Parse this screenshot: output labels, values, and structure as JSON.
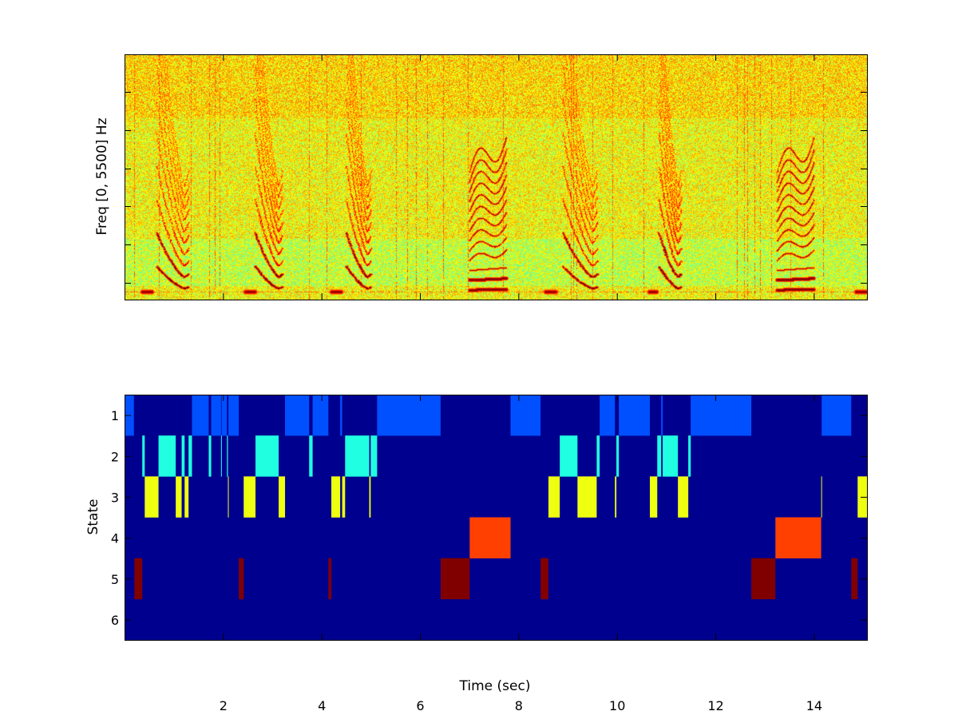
{
  "chart_data": [
    {
      "type": "heatmap",
      "title": "",
      "ylabel": "Freq [0, 5500] Hz",
      "xlabel": "",
      "xlim": [
        0,
        15.08
      ],
      "ylim": [
        0,
        5500
      ],
      "colormap": "jet",
      "spectrogram_events": {
        "swoop_calls": [
          [
            0.65,
            1.3
          ],
          [
            2.65,
            3.2
          ],
          [
            4.5,
            5.0
          ],
          [
            8.9,
            9.6
          ],
          [
            10.85,
            11.3
          ]
        ],
        "harmonic_stack_calls": [
          [
            7.0,
            7.75
          ],
          [
            13.25,
            14.0
          ]
        ],
        "low_frequency_bursts": [
          [
            0.35,
            0.55
          ],
          [
            2.45,
            2.65
          ],
          [
            4.2,
            4.4
          ],
          [
            8.55,
            8.75
          ],
          [
            10.65,
            10.8
          ],
          [
            14.85,
            15.05
          ]
        ]
      }
    },
    {
      "type": "heatmap",
      "title": "",
      "xlabel": "Time (sec)",
      "ylabel": "State",
      "xlim": [
        0,
        15.08
      ],
      "ylim": [
        0.5,
        6.5
      ],
      "xticks": [
        "2",
        "4",
        "6",
        "8",
        "10",
        "12",
        "14"
      ],
      "yticks": [
        "1",
        "2",
        "3",
        "4",
        "5",
        "6"
      ],
      "background_color": "#00008F",
      "state_colors": {
        "1": "#0050FF",
        "2": "#20FFE0",
        "3": "#EFFF10",
        "4": "#FF4000",
        "5": "#800000"
      },
      "segments": {
        "1": [
          [
            0,
            0.19
          ],
          [
            1.37,
            1.71
          ],
          [
            1.76,
            1.96
          ],
          [
            1.97,
            2.08
          ],
          [
            2.11,
            2.32
          ],
          [
            3.26,
            3.75
          ],
          [
            3.82,
            4.14
          ],
          [
            4.38,
            4.42
          ],
          [
            5.13,
            6.42
          ],
          [
            7.84,
            8.45
          ],
          [
            9.65,
            9.96
          ],
          [
            10.04,
            10.67
          ],
          [
            10.9,
            10.93
          ],
          [
            11.5,
            12.73
          ],
          [
            14.16,
            14.76
          ]
        ],
        "2": [
          [
            0.36,
            0.41
          ],
          [
            0.69,
            1.04
          ],
          [
            1.16,
            1.22
          ],
          [
            1.3,
            1.37
          ],
          [
            1.71,
            1.76
          ],
          [
            1.96,
            1.97
          ],
          [
            2.08,
            2.1
          ],
          [
            2.66,
            3.13
          ],
          [
            3.75,
            3.82
          ],
          [
            4.48,
            4.97
          ],
          [
            5.0,
            5.13
          ],
          [
            8.84,
            9.2
          ],
          [
            9.59,
            9.65
          ],
          [
            9.99,
            10.04
          ],
          [
            10.82,
            10.9
          ],
          [
            10.93,
            11.24
          ],
          [
            11.45,
            11.5
          ]
        ],
        "3": [
          [
            0.41,
            0.69
          ],
          [
            1.04,
            1.16
          ],
          [
            1.22,
            1.3
          ],
          [
            2.1,
            2.11
          ],
          [
            2.42,
            2.66
          ],
          [
            3.13,
            3.26
          ],
          [
            4.2,
            4.38
          ],
          [
            4.42,
            4.48
          ],
          [
            4.97,
            5.0
          ],
          [
            8.61,
            8.84
          ],
          [
            9.2,
            9.59
          ],
          [
            9.96,
            9.99
          ],
          [
            10.67,
            10.82
          ],
          [
            11.24,
            11.45
          ],
          [
            14.15,
            14.16
          ],
          [
            14.89,
            15.08
          ]
        ],
        "4": [
          [
            7.01,
            7.84
          ],
          [
            13.22,
            14.15
          ]
        ],
        "5": [
          [
            0.2,
            0.36
          ],
          [
            2.32,
            2.42
          ],
          [
            4.14,
            4.2
          ],
          [
            6.42,
            7.01
          ],
          [
            8.45,
            8.61
          ],
          [
            12.73,
            13.22
          ],
          [
            14.76,
            14.89
          ]
        ]
      }
    }
  ]
}
